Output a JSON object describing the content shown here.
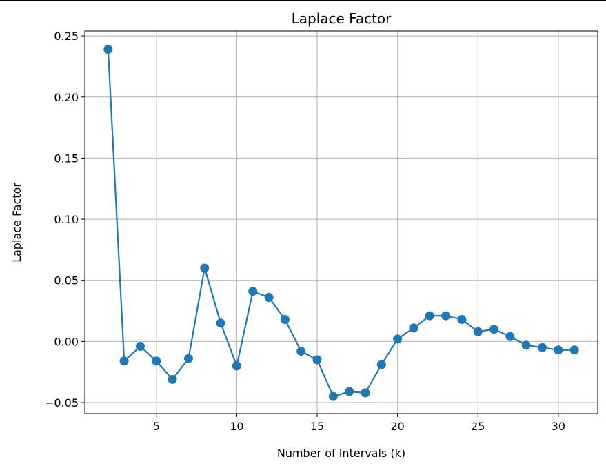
{
  "chart_data": {
    "type": "line",
    "title": "Laplace Factor",
    "xlabel": "Number of Intervals (k)",
    "ylabel": "Laplace Factor",
    "xlim": [
      0.55,
      32.45
    ],
    "ylim": [
      -0.059,
      0.254
    ],
    "xticks": [
      5,
      10,
      15,
      20,
      25,
      30
    ],
    "xtick_labels": [
      "5",
      "10",
      "15",
      "20",
      "25",
      "30"
    ],
    "yticks": [
      -0.05,
      0.0,
      0.05,
      0.1,
      0.15,
      0.2,
      0.25
    ],
    "ytick_labels": [
      "−0.05",
      "0.00",
      "0.05",
      "0.10",
      "0.15",
      "0.20",
      "0.25"
    ],
    "grid": true,
    "marker": "circle",
    "color": "#1f77b4",
    "series": [
      {
        "x": [
          2,
          3,
          4,
          5,
          6,
          7,
          8,
          9,
          10,
          11,
          12,
          13,
          14,
          15,
          16,
          17,
          18,
          19,
          20,
          21,
          22,
          23,
          24,
          25,
          26,
          27,
          28,
          29,
          30,
          31
        ],
        "values": [
          0.239,
          -0.016,
          -0.004,
          -0.016,
          -0.031,
          -0.014,
          0.06,
          0.015,
          -0.02,
          0.041,
          0.036,
          0.018,
          -0.008,
          -0.015,
          -0.045,
          -0.041,
          -0.042,
          -0.019,
          0.002,
          0.011,
          0.021,
          0.021,
          0.018,
          0.008,
          0.01,
          0.004,
          -0.003,
          -0.005,
          -0.007,
          -0.007
        ]
      }
    ]
  }
}
